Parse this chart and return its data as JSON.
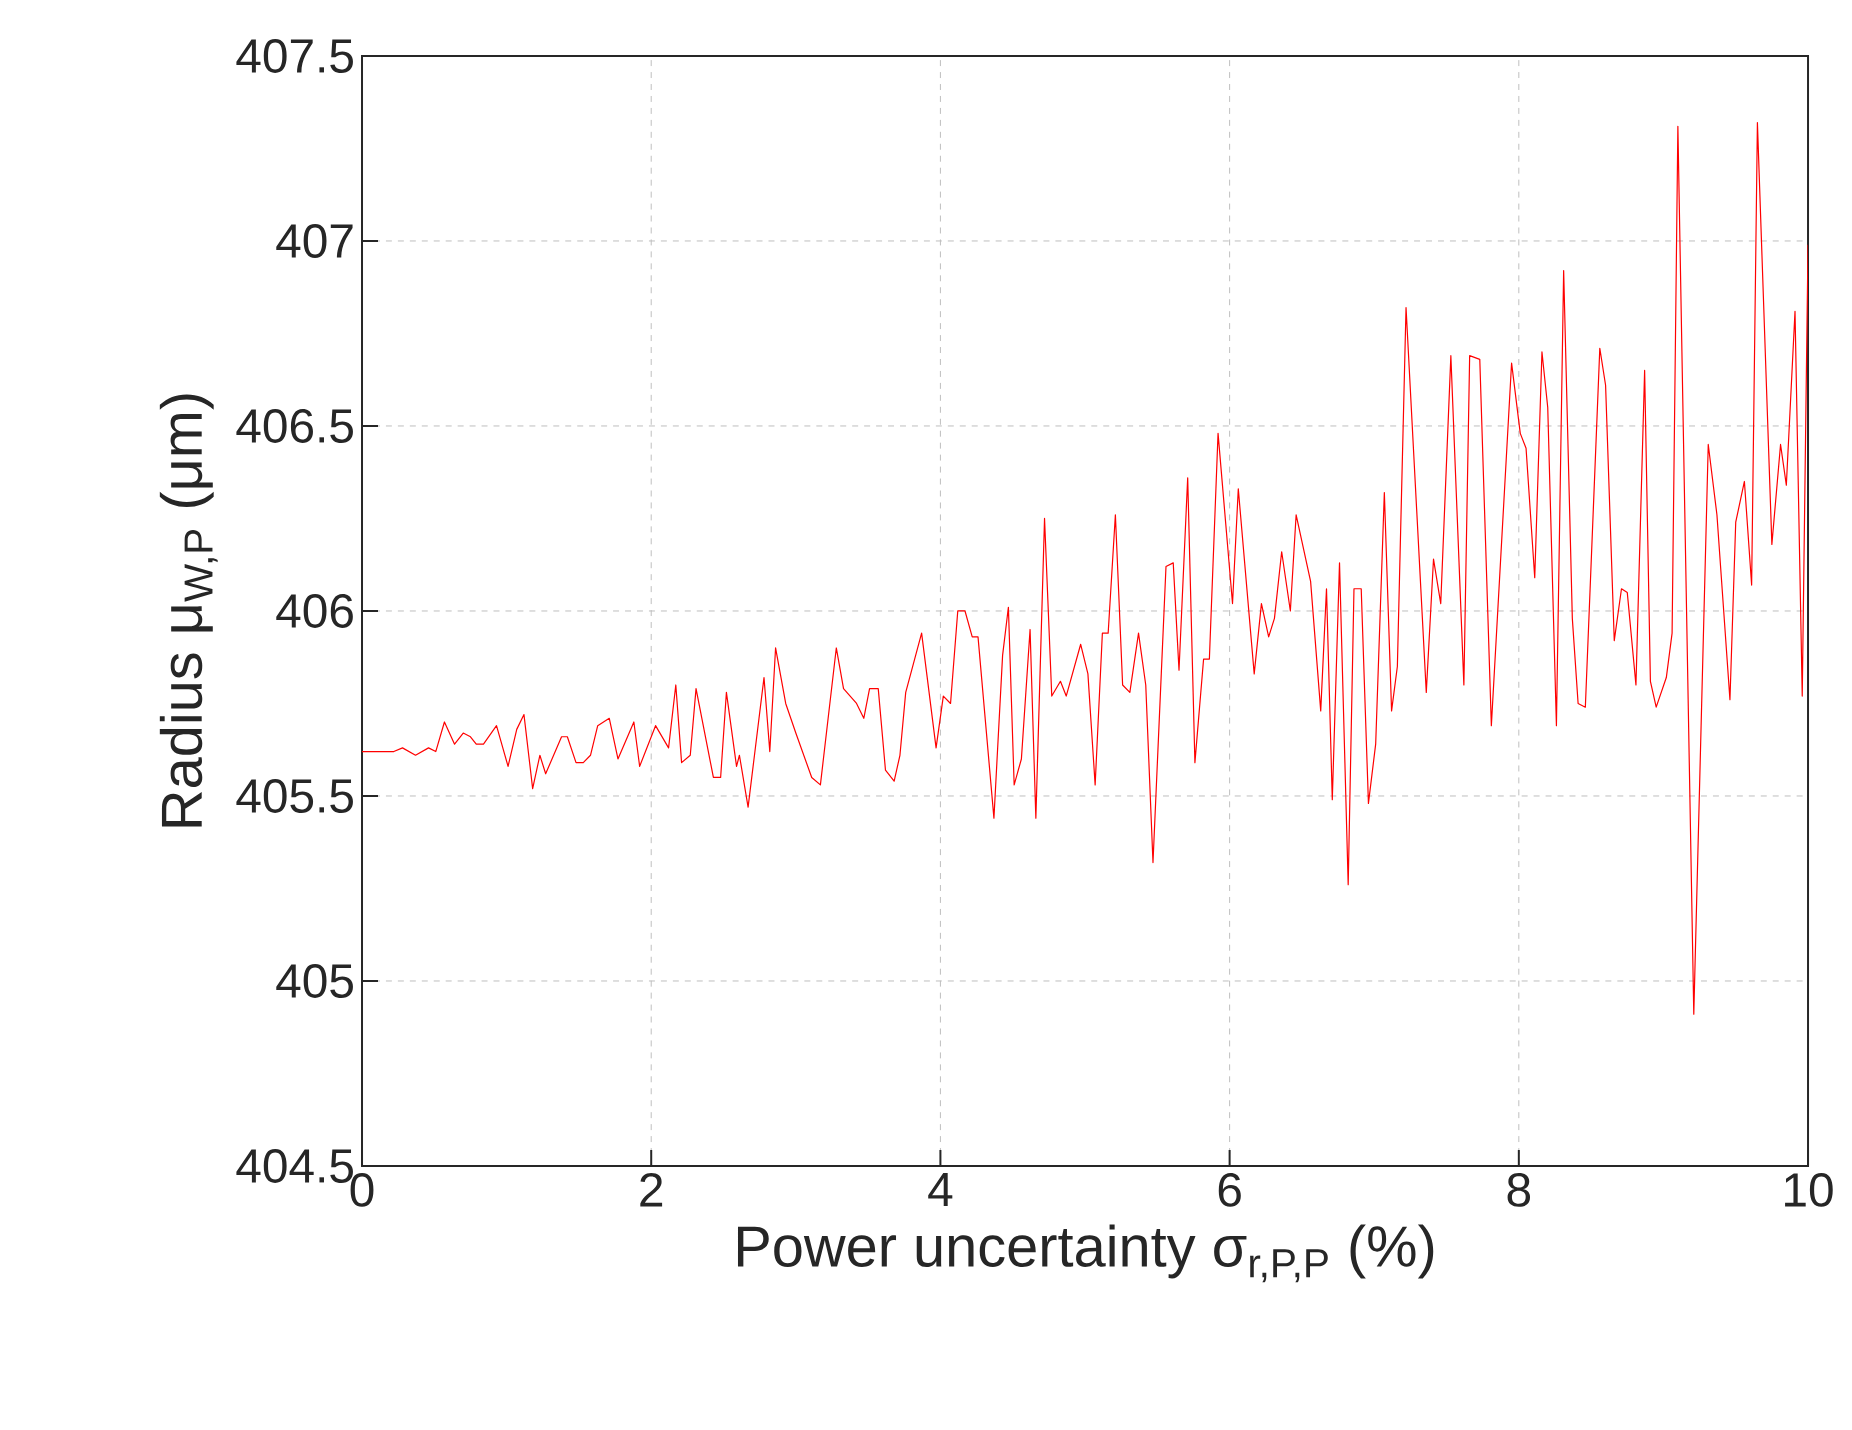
{
  "chart_data": {
    "type": "line",
    "xlabel": "Power uncertainty σ$_{r,P,P}$ (%)",
    "ylabel": "Radius μ$_{W,P}$ (μm)",
    "xlim": [
      0,
      10
    ],
    "ylim": [
      404.5,
      407.5
    ],
    "xticks": [
      0,
      2,
      4,
      6,
      8,
      10
    ],
    "yticks": [
      404.5,
      405,
      405.5,
      406,
      406.5,
      407,
      407.5
    ],
    "grid": true,
    "marker": "none",
    "line_style": "solid",
    "series": [
      {
        "color": "#ff0000",
        "x": [
          0,
          0.15,
          0.22,
          0.28,
          0.37,
          0.46,
          0.51,
          0.57,
          0.64,
          0.7,
          0.75,
          0.79,
          0.84,
          0.93,
          1.01,
          1.07,
          1.12,
          1.18,
          1.23,
          1.27,
          1.38,
          1.42,
          1.48,
          1.53,
          1.58,
          1.63,
          1.71,
          1.77,
          1.88,
          1.92,
          2.03,
          2.12,
          2.17,
          2.21,
          2.27,
          2.31,
          2.43,
          2.48,
          2.52,
          2.59,
          2.61,
          2.67,
          2.78,
          2.82,
          2.86,
          2.93,
          3.0,
          3.11,
          3.17,
          3.28,
          3.33,
          3.42,
          3.47,
          3.51,
          3.57,
          3.62,
          3.68,
          3.72,
          3.76,
          3.87,
          3.97,
          4.02,
          4.07,
          4.12,
          4.17,
          4.22,
          4.26,
          4.37,
          4.43,
          4.47,
          4.51,
          4.56,
          4.62,
          4.66,
          4.72,
          4.77,
          4.83,
          4.87,
          4.97,
          5.02,
          5.07,
          5.12,
          5.16,
          5.21,
          5.26,
          5.31,
          5.37,
          5.42,
          5.47,
          5.56,
          5.61,
          5.65,
          5.71,
          5.76,
          5.82,
          5.86,
          5.92,
          6.02,
          6.06,
          6.17,
          6.22,
          6.27,
          6.31,
          6.36,
          6.42,
          6.46,
          6.56,
          6.63,
          6.67,
          6.71,
          6.76,
          6.82,
          6.86,
          6.91,
          6.96,
          7.01,
          7.07,
          7.12,
          7.16,
          7.22,
          7.36,
          7.41,
          7.46,
          7.53,
          7.62,
          7.66,
          7.73,
          7.81,
          7.95,
          8.01,
          8.05,
          8.11,
          8.16,
          8.2,
          8.26,
          8.31,
          8.37,
          8.41,
          8.46,
          8.56,
          8.6,
          8.66,
          8.71,
          8.75,
          8.81,
          8.87,
          8.91,
          8.95,
          9.02,
          9.06,
          9.1,
          9.21,
          9.31,
          9.37,
          9.46,
          9.5,
          9.56,
          9.61,
          9.65,
          9.75,
          9.81,
          9.85,
          9.91,
          9.96,
          10.0
        ],
        "values": [
          405.62,
          405.62,
          405.62,
          405.63,
          405.61,
          405.63,
          405.62,
          405.7,
          405.64,
          405.67,
          405.66,
          405.64,
          405.64,
          405.69,
          405.58,
          405.68,
          405.72,
          405.52,
          405.61,
          405.56,
          405.66,
          405.66,
          405.59,
          405.59,
          405.61,
          405.69,
          405.71,
          405.6,
          405.7,
          405.58,
          405.69,
          405.63,
          405.8,
          405.59,
          405.61,
          405.79,
          405.55,
          405.55,
          405.78,
          405.58,
          405.61,
          405.47,
          405.82,
          405.62,
          405.9,
          405.75,
          405.67,
          405.55,
          405.53,
          405.9,
          405.79,
          405.75,
          405.71,
          405.79,
          405.79,
          405.57,
          405.54,
          405.61,
          405.78,
          405.94,
          405.63,
          405.77,
          405.75,
          406.0,
          406.0,
          405.93,
          405.93,
          405.44,
          405.88,
          406.01,
          405.53,
          405.6,
          405.95,
          405.44,
          406.25,
          405.77,
          405.81,
          405.77,
          405.91,
          405.83,
          405.53,
          405.94,
          405.94,
          406.26,
          405.8,
          405.78,
          405.94,
          405.8,
          405.32,
          406.12,
          406.13,
          405.84,
          406.36,
          405.59,
          405.87,
          405.87,
          406.48,
          406.02,
          406.33,
          405.83,
          406.02,
          405.93,
          405.98,
          406.16,
          406.0,
          406.26,
          406.08,
          405.73,
          406.06,
          405.49,
          406.13,
          405.26,
          406.06,
          406.06,
          405.48,
          405.64,
          406.32,
          405.73,
          405.85,
          406.82,
          405.78,
          406.14,
          406.02,
          406.69,
          405.8,
          406.69,
          406.68,
          405.69,
          406.67,
          406.48,
          406.44,
          406.09,
          406.7,
          406.55,
          405.69,
          406.92,
          405.98,
          405.75,
          405.74,
          406.71,
          406.61,
          405.92,
          406.06,
          406.05,
          405.8,
          406.65,
          405.81,
          405.74,
          405.82,
          405.94,
          407.31,
          404.91,
          406.45,
          406.26,
          405.76,
          406.24,
          406.35,
          406.07,
          407.32,
          406.18,
          406.45,
          406.34,
          406.81,
          405.77,
          406.99
        ]
      }
    ]
  }
}
